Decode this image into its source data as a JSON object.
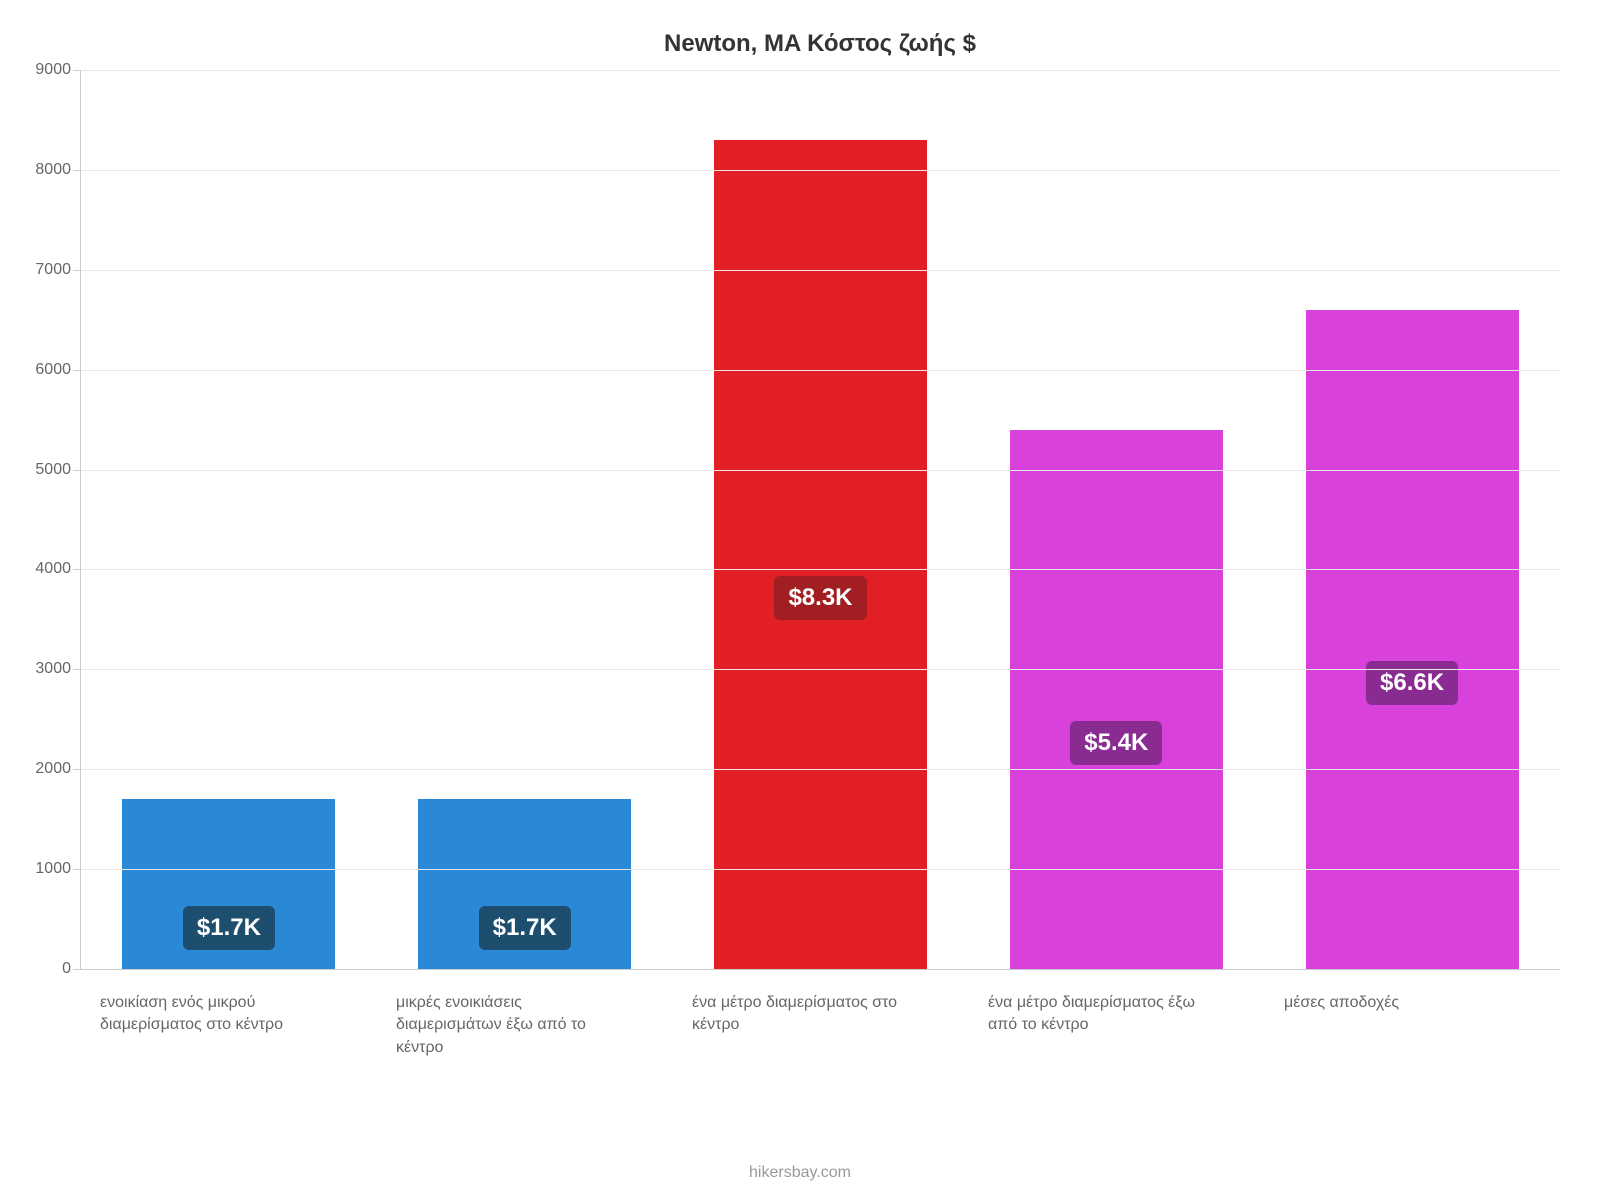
{
  "chart": {
    "type": "bar",
    "title": "Newton, MA Κόστος ζωής $",
    "title_fontsize": 24,
    "title_color": "#333333",
    "background_color": "#ffffff",
    "grid_color": "#e6e6e6",
    "axis_color": "#cccccc",
    "tick_label_color": "#666666",
    "tick_label_fontsize": 16,
    "x_label_fontsize": 16,
    "x_label_color": "#666666",
    "ylim": [
      0,
      9000
    ],
    "ytick_step": 1000,
    "yticks": [
      0,
      1000,
      2000,
      3000,
      4000,
      5000,
      6000,
      7000,
      8000,
      9000
    ],
    "bar_width_ratio": 0.72,
    "categories": [
      "ενοικίαση ενός μικρού διαμερίσματος στο κέντρο",
      "μικρές ενοικιάσεις διαμερισμάτων έξω από το κέντρο",
      "ένα μέτρο διαμερίσματος στο κέντρο",
      "ένα μέτρο διαμερίσματος έξω από το κέντρο",
      "μέσες αποδοχές"
    ],
    "values": [
      1700,
      1700,
      8300,
      5400,
      6600
    ],
    "value_labels": [
      "$1.7K",
      "$1.7K",
      "$8.3K",
      "$5.4K",
      "$6.6K"
    ],
    "bar_colors": [
      "#2a89d6",
      "#2a89d6",
      "#e31f26",
      "#d941dd",
      "#d941dd"
    ],
    "badge_colors": [
      "#1d4e6e",
      "#1d4e6e",
      "#a11f22",
      "#8a2b91",
      "#8a2b91"
    ],
    "badge_fontsize": 24,
    "badge_text_color": "#ffffff",
    "badge_position_ratio": 0.5,
    "credit": "hikersbay.com",
    "credit_color": "#999999",
    "credit_fontsize": 16
  }
}
